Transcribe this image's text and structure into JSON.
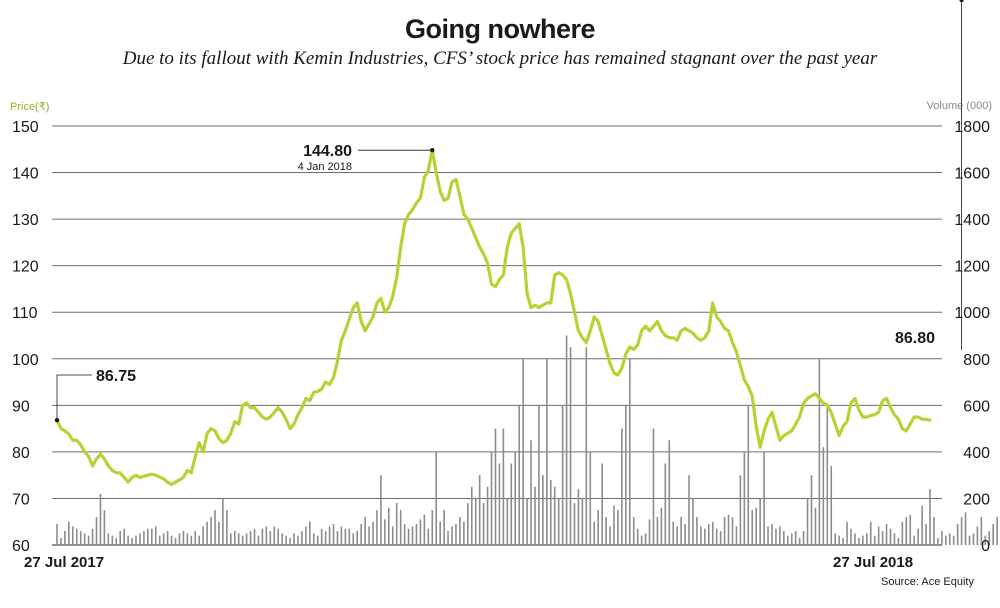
{
  "header": {
    "title": "Going nowhere",
    "subtitle": "Due to its fallout with Kemin Industries, CFS’ stock price has remained stagnant over the past year"
  },
  "source": "Source: Ace Equity",
  "colors": {
    "price_line": "#b5d334",
    "volume_bars": "#8c8c8c",
    "gridlines": "#6e6e6e"
  },
  "chart_data": {
    "type": "line",
    "ylabel_left": "Price(₹)",
    "ylabel_right": "Volume (000)",
    "x_start_label": "27 Jul 2017",
    "x_end_label": "27 Jul 2018",
    "ylim_left": [
      60,
      150
    ],
    "yticks_left": [
      "60",
      "70",
      "80",
      "90",
      "100",
      "110",
      "120",
      "130",
      "140",
      "150"
    ],
    "ylim_right": [
      0,
      1800
    ],
    "yticks_right": [
      "0",
      "200",
      "400",
      "600",
      "800",
      "1000",
      "1200",
      "1400",
      "1600",
      "1800"
    ],
    "grid": true,
    "annotations": [
      {
        "value": "86.75",
        "point_index": 0
      },
      {
        "value": "144.80",
        "date": "4 Jan 2018",
        "point_index": 95
      },
      {
        "value": "86.80",
        "point_index": 229
      }
    ],
    "series": [
      {
        "name": "Price(₹)",
        "axis": "left",
        "values": [
          86.8,
          85,
          84.5,
          83.8,
          82.5,
          82.5,
          81.5,
          80,
          79,
          77,
          78.5,
          79.5,
          78.5,
          77,
          76,
          75.5,
          75.5,
          74.5,
          73.5,
          74.5,
          75,
          74.5,
          74.8,
          75,
          75.2,
          75,
          74.6,
          74.2,
          73.5,
          73,
          73.5,
          74,
          74.5,
          76,
          75.5,
          79,
          82,
          80,
          84,
          85,
          84.5,
          82.8,
          82,
          82.5,
          84,
          86.5,
          86,
          90,
          90.5,
          89.5,
          89.5,
          88.5,
          87.5,
          87,
          87.5,
          88.5,
          89.5,
          88.5,
          87,
          85,
          86,
          88,
          89.5,
          91.5,
          91,
          92.8,
          93,
          93.5,
          95,
          94.5,
          96,
          99.5,
          104,
          106,
          108.5,
          111,
          112,
          108,
          106,
          107.5,
          109,
          112,
          113,
          110,
          111,
          113.5,
          117.5,
          124,
          129,
          131,
          132,
          133.5,
          134.5,
          139,
          140.5,
          144.8,
          140,
          136,
          134,
          134.5,
          138,
          138.5,
          135,
          131,
          130,
          128,
          126,
          124,
          122.5,
          120.5,
          116,
          115.5,
          117,
          118,
          124,
          127,
          128,
          129,
          124,
          114,
          111,
          111.5,
          111,
          111.5,
          112,
          112,
          118,
          118.5,
          118,
          117,
          114,
          110,
          106,
          104.5,
          103.5,
          106,
          109,
          108,
          105,
          102,
          99,
          97,
          96.5,
          98,
          101,
          102.5,
          102,
          103,
          106,
          107,
          106,
          107,
          108,
          106,
          105,
          104.5,
          104.5,
          104,
          106,
          106.5,
          106,
          105.5,
          104.5,
          104,
          104.5,
          106,
          112,
          109,
          108,
          106.5,
          106,
          103.5,
          101.5,
          98.5,
          95.5,
          94,
          92,
          85.5,
          81,
          84.5,
          87,
          88.5,
          85.5,
          82.5,
          83.5,
          84,
          84.5,
          86,
          87.5,
          90.5,
          91.5,
          92,
          92.5,
          91.5,
          90.5,
          90,
          88.5,
          86,
          83.5,
          85.5,
          86.5,
          90.5,
          91.5,
          89,
          87.5,
          87.5,
          87.8,
          88,
          88.5,
          91,
          91.5,
          89.5,
          88,
          87,
          85,
          84.5,
          86,
          87.5,
          87.5,
          87,
          87,
          86.8
        ]
      },
      {
        "name": "Volume (000)",
        "axis": "right",
        "values": [
          90,
          30,
          60,
          100,
          80,
          70,
          60,
          50,
          40,
          70,
          120,
          220,
          150,
          50,
          40,
          30,
          60,
          70,
          40,
          30,
          40,
          50,
          60,
          70,
          70,
          80,
          40,
          50,
          60,
          40,
          30,
          50,
          60,
          50,
          40,
          60,
          40,
          80,
          100,
          120,
          150,
          100,
          200,
          150,
          50,
          60,
          50,
          40,
          50,
          60,
          70,
          40,
          70,
          80,
          60,
          80,
          70,
          50,
          40,
          30,
          50,
          40,
          60,
          80,
          100,
          50,
          40,
          70,
          60,
          80,
          90,
          60,
          80,
          70,
          70,
          50,
          60,
          90,
          120,
          80,
          100,
          150,
          300,
          110,
          160,
          80,
          180,
          150,
          90,
          70,
          80,
          90,
          110,
          130,
          70,
          150,
          400,
          100,
          150,
          60,
          80,
          90,
          120,
          100,
          180,
          250,
          200,
          300,
          180,
          250,
          400,
          500,
          350,
          500,
          200,
          350,
          400,
          600,
          800,
          200,
          450,
          250,
          600,
          300,
          800,
          280,
          250,
          200,
          600,
          900,
          850,
          180,
          240,
          200,
          850,
          400,
          100,
          150,
          350,
          120,
          80,
          170,
          150,
          500,
          600,
          800,
          120,
          70,
          40,
          50,
          110,
          500,
          120,
          160,
          350,
          450,
          100,
          80,
          120,
          90,
          300,
          200,
          120,
          80,
          70,
          90,
          100,
          70,
          60,
          120,
          130,
          120,
          80,
          300,
          400,
          600,
          150,
          160,
          200,
          400,
          80,
          90,
          70,
          80,
          60,
          40,
          50,
          60,
          30,
          60,
          200,
          300,
          160,
          800,
          420,
          600,
          340,
          50,
          40,
          30,
          100,
          70,
          50,
          30,
          40,
          50,
          100,
          40,
          80,
          60,
          90,
          70,
          50,
          30,
          100,
          120,
          130,
          40,
          70,
          170,
          90,
          240,
          120,
          30,
          60,
          40,
          50,
          40,
          90,
          120,
          140,
          40,
          50,
          80,
          120,
          40,
          60,
          90,
          120,
          250
        ]
      }
    ]
  }
}
